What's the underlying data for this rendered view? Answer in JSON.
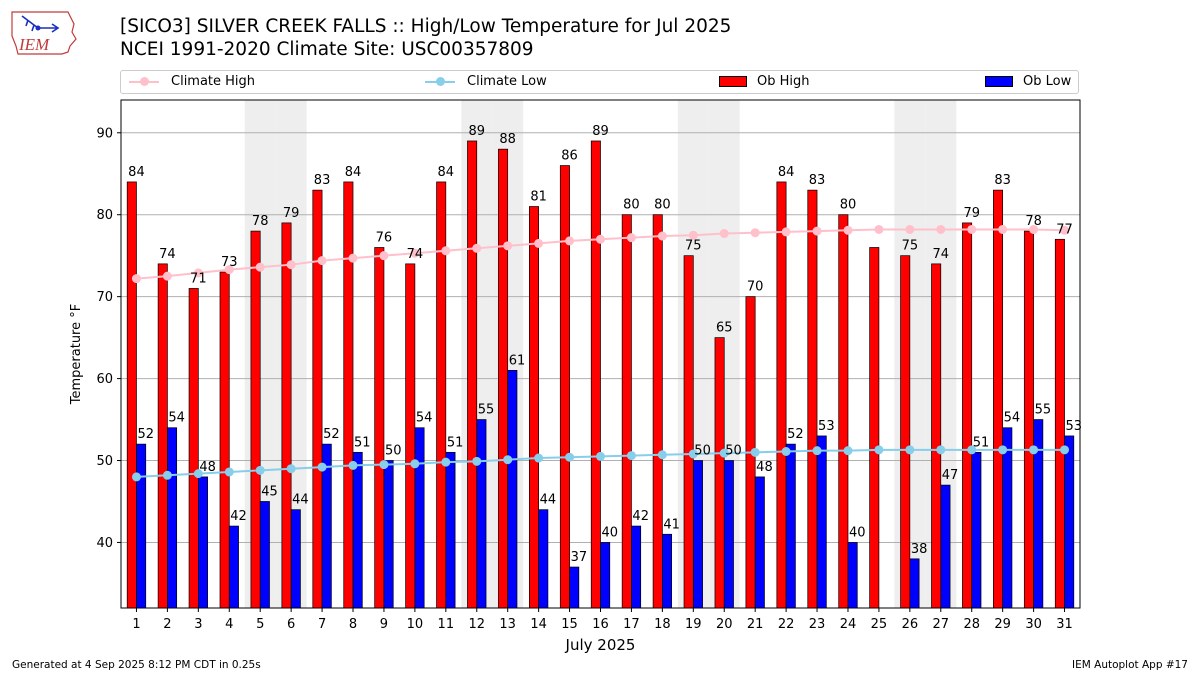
{
  "header": {
    "title_line1": "[SICO3] SILVER CREEK FALLS :: High/Low Temperature for Jul 2025",
    "title_line2": "NCEI 1991-2020 Climate Site: USC00357809",
    "logo_text": "IEM"
  },
  "footer": {
    "generated": "Generated at 4 Sep 2025 8:12 PM CDT in 0.25s",
    "app": "IEM Autoplot App #17"
  },
  "colors": {
    "ob_high": "#ff0000",
    "ob_low": "#0000ff",
    "climate_high": "#ffc0cb",
    "climate_low": "#87ceeb",
    "weekend_band": "#eeeeee",
    "grid": "#b0b0b0"
  },
  "chart_data": {
    "type": "bar",
    "xlabel": "July 2025",
    "ylabel": "Temperature °F",
    "ylim": [
      32,
      94
    ],
    "yticks": [
      40,
      50,
      60,
      70,
      80,
      90
    ],
    "grid": "horizontal",
    "legend_position": "top",
    "categories": [
      "1",
      "2",
      "3",
      "4",
      "5",
      "6",
      "7",
      "8",
      "9",
      "10",
      "11",
      "12",
      "13",
      "14",
      "15",
      "16",
      "17",
      "18",
      "19",
      "20",
      "21",
      "22",
      "23",
      "24",
      "25",
      "26",
      "27",
      "28",
      "29",
      "30",
      "31"
    ],
    "weekend_days": [
      5,
      6,
      12,
      13,
      19,
      20,
      26,
      27
    ],
    "series": [
      {
        "name": "Ob High",
        "kind": "bar",
        "values": [
          84,
          74,
          71,
          73,
          78,
          79,
          83,
          84,
          76,
          74,
          84,
          89,
          88,
          81,
          86,
          89,
          80,
          80,
          75,
          65,
          70,
          84,
          83,
          80,
          76,
          75,
          74,
          79,
          83,
          78,
          77
        ],
        "labels": [
          "84",
          "74",
          "71",
          "73",
          "78",
          "79",
          "83",
          "84",
          "76",
          "74",
          "84",
          "89",
          "88",
          "81",
          "86",
          "89",
          "80",
          "80",
          "75",
          "65",
          "70",
          "84",
          "83",
          "80",
          null,
          "75",
          "74",
          "79",
          "83",
          "78",
          "77"
        ]
      },
      {
        "name": "Ob Low",
        "kind": "bar",
        "values": [
          52,
          54,
          48,
          42,
          45,
          44,
          52,
          51,
          50,
          54,
          51,
          55,
          61,
          44,
          37,
          40,
          42,
          41,
          50,
          50,
          48,
          52,
          53,
          40,
          null,
          38,
          47,
          51,
          54,
          55,
          53
        ],
        "labels": [
          "52",
          "54",
          "48",
          "42",
          "45",
          "44",
          "52",
          "51",
          "50",
          "54",
          "51",
          "55",
          "61",
          "44",
          "37",
          "40",
          "42",
          "41",
          "50",
          "50",
          "48",
          "52",
          "53",
          "40",
          null,
          "38",
          "47",
          "51",
          "54",
          "55",
          "53"
        ]
      },
      {
        "name": "Climate High",
        "kind": "line",
        "values": [
          72.2,
          72.5,
          72.9,
          73.3,
          73.6,
          73.9,
          74.4,
          74.7,
          75.0,
          75.3,
          75.6,
          75.9,
          76.2,
          76.5,
          76.8,
          77.0,
          77.2,
          77.4,
          77.5,
          77.7,
          77.8,
          77.9,
          78.0,
          78.1,
          78.2,
          78.2,
          78.2,
          78.2,
          78.2,
          78.2,
          78.1
        ]
      },
      {
        "name": "Climate Low",
        "kind": "line",
        "values": [
          48.0,
          48.2,
          48.4,
          48.6,
          48.8,
          49.0,
          49.2,
          49.4,
          49.5,
          49.6,
          49.8,
          49.9,
          50.1,
          50.3,
          50.4,
          50.5,
          50.6,
          50.7,
          50.8,
          50.9,
          51.0,
          51.1,
          51.2,
          51.2,
          51.3,
          51.3,
          51.3,
          51.3,
          51.3,
          51.3,
          51.3
        ]
      }
    ]
  }
}
